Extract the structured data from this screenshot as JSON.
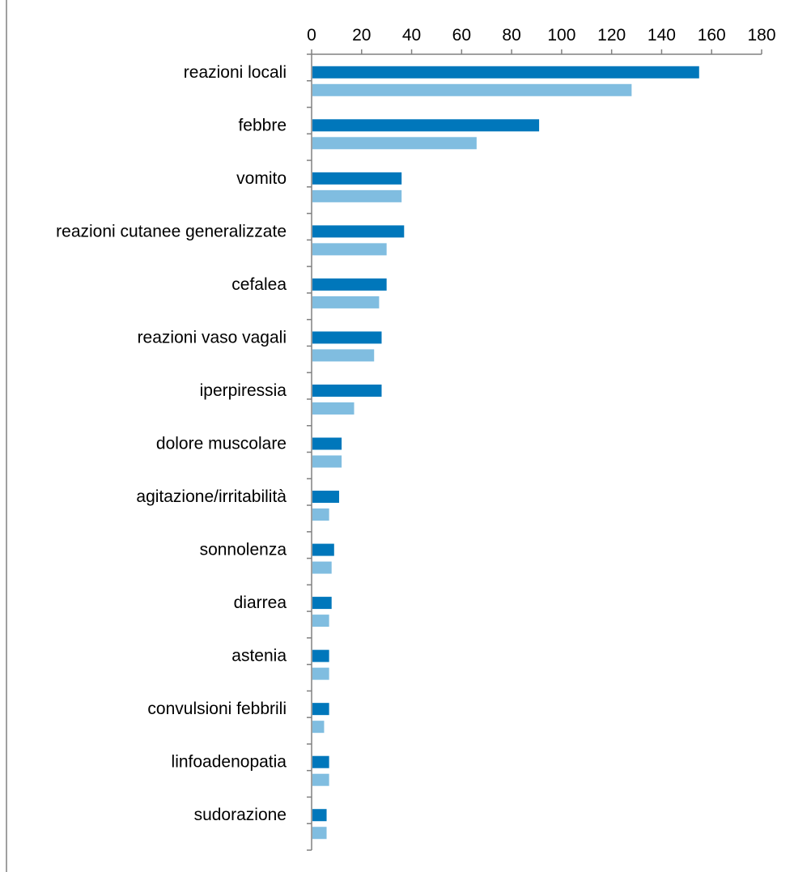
{
  "chart_data": {
    "type": "bar",
    "orientation": "horizontal",
    "title": "",
    "xlabel": "",
    "ylabel": "",
    "xlim": [
      0,
      180
    ],
    "x_ticks": [
      0,
      20,
      40,
      60,
      80,
      100,
      120,
      140,
      160,
      180
    ],
    "x_tick_labels": [
      "0",
      "20",
      "40",
      "60",
      "80",
      "100",
      "120",
      "140",
      "160",
      "180"
    ],
    "axis_position": "top",
    "grid": false,
    "legend": "none",
    "categories": [
      "reazioni locali",
      "febbre",
      "vomito",
      "reazioni cutanee generalizzate",
      "cefalea",
      "reazioni vaso vagali",
      "iperpiressia",
      "dolore muscolare",
      "agitazione/irritabilità",
      "sonnolenza",
      "diarrea",
      "astenia",
      "convulsioni febbrili",
      "linfoadenopatia",
      "sudorazione"
    ],
    "series": [
      {
        "color": "#0077bb",
        "values": [
          155,
          91,
          36,
          37,
          30,
          28,
          28,
          12,
          11,
          9,
          8,
          7,
          7,
          7,
          6
        ]
      },
      {
        "color": "#80bde0",
        "values": [
          128,
          66,
          36,
          30,
          27,
          25,
          17,
          12,
          7,
          8,
          7,
          7,
          5,
          7,
          6
        ]
      }
    ],
    "axis_color": "#808080",
    "frame_color": "#808080"
  }
}
